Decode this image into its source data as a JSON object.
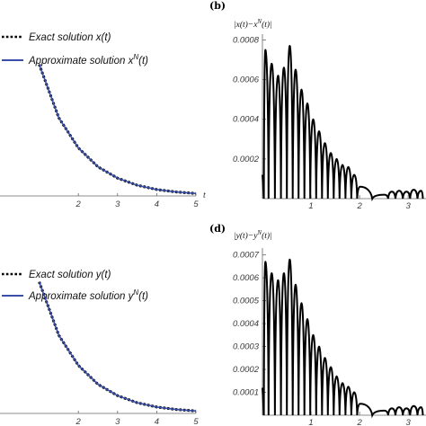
{
  "chart_data": [
    {
      "panel": "a",
      "type": "line",
      "xlabel": "t",
      "xlim": [
        0,
        5
      ],
      "x_ticks": [
        "2",
        "3",
        "4",
        "5"
      ],
      "series": [
        {
          "name": "Exact solution x(t)",
          "style": "dotted",
          "color": "#000000",
          "x": [
            1.0,
            1.5,
            2.0,
            2.5,
            3.0,
            3.5,
            4.0,
            4.5,
            5.0
          ],
          "y": [
            0.37,
            0.22,
            0.135,
            0.082,
            0.05,
            0.03,
            0.018,
            0.011,
            0.0067
          ]
        },
        {
          "name": "Approximate solution x^N(t)",
          "style": "solid",
          "color": "#3a4fa8",
          "x": [
            1.0,
            1.5,
            2.0,
            2.5,
            3.0,
            3.5,
            4.0,
            4.5,
            5.0
          ],
          "y": [
            0.37,
            0.22,
            0.135,
            0.082,
            0.05,
            0.03,
            0.018,
            0.011,
            0.0067
          ]
        }
      ],
      "legend": [
        {
          "prefix": "Exact solution ",
          "var": "x",
          "sup": "",
          "suffix": "(t)"
        },
        {
          "prefix": "Approximate solution ",
          "var": "x",
          "sup": "N",
          "suffix": "(t)"
        }
      ]
    },
    {
      "panel": "b",
      "type": "line",
      "label": "(b)",
      "ylabel": "|x(t)−x^N(t)|",
      "ylabel_parts": {
        "left": "|x(t)−x",
        "sup": "N",
        "right": "(t)|"
      },
      "xlim": [
        0,
        3.35
      ],
      "ylim": [
        0,
        0.00082
      ],
      "y_ticks": [
        0.0002,
        0.0004,
        0.0006,
        0.0008
      ],
      "y_tick_labels": [
        "0.0002",
        "0.0004",
        "0.0006",
        "0.0008"
      ],
      "x_ticks": [
        1,
        2,
        3
      ],
      "x_tick_labels": [
        "1",
        "2",
        "3"
      ],
      "series": [
        {
          "name": "",
          "color": "#000000",
          "peaks": [
            [
              0.06,
              0.00075
            ],
            [
              0.19,
              0.00068
            ],
            [
              0.32,
              0.00062
            ],
            [
              0.44,
              0.00066
            ],
            [
              0.56,
              0.00077
            ],
            [
              0.68,
              0.00065
            ],
            [
              0.8,
              0.00055
            ],
            [
              0.92,
              0.00048
            ],
            [
              1.04,
              0.0004
            ],
            [
              1.16,
              0.00034
            ],
            [
              1.28,
              0.00028
            ],
            [
              1.4,
              0.00023
            ],
            [
              1.52,
              0.0002
            ],
            [
              1.64,
              0.00017
            ],
            [
              1.76,
              0.00016
            ],
            [
              1.88,
              0.00012
            ],
            [
              2.0,
              6e-05
            ],
            [
              2.5,
              2e-05
            ],
            [
              2.65,
              3.5e-05
            ],
            [
              2.8,
              4e-05
            ],
            [
              2.95,
              3.5e-05
            ],
            [
              3.1,
              4.5e-05
            ],
            [
              3.25,
              4e-05
            ]
          ]
        }
      ]
    },
    {
      "panel": "c",
      "type": "line",
      "xlabel": "t",
      "xlim": [
        0,
        5
      ],
      "x_ticks": [
        "2",
        "3",
        "4",
        "5"
      ],
      "series": [
        {
          "name": "Exact solution y(t)",
          "style": "dotted",
          "color": "#000000",
          "x": [
            1.0,
            1.5,
            2.0,
            2.5,
            3.0,
            3.5,
            4.0,
            4.5,
            5.0
          ],
          "y": [
            0.37,
            0.22,
            0.135,
            0.082,
            0.05,
            0.03,
            0.018,
            0.011,
            0.0067
          ]
        },
        {
          "name": "Approximate solution y^N(t)",
          "style": "solid",
          "color": "#3a4fa8",
          "x": [
            1.0,
            1.5,
            2.0,
            2.5,
            3.0,
            3.5,
            4.0,
            4.5,
            5.0
          ],
          "y": [
            0.37,
            0.22,
            0.135,
            0.082,
            0.05,
            0.03,
            0.018,
            0.011,
            0.0067
          ]
        }
      ],
      "legend": [
        {
          "prefix": "Exact solution ",
          "var": "y",
          "sup": "",
          "suffix": "(t)"
        },
        {
          "prefix": "Approximate solution ",
          "var": "y",
          "sup": "N",
          "suffix": "(t)"
        }
      ]
    },
    {
      "panel": "d",
      "type": "line",
      "label": "(d)",
      "ylabel": "|y(t)−y^N(t)|",
      "ylabel_parts": {
        "left": "|y(t)−y",
        "sup": "N",
        "right": "(t)|"
      },
      "xlim": [
        0,
        3.35
      ],
      "ylim": [
        0,
        0.00073
      ],
      "y_ticks": [
        0.0001,
        0.0002,
        0.0003,
        0.0004,
        0.0005,
        0.0006,
        0.0007
      ],
      "y_tick_labels": [
        "0.0001",
        "0.0002",
        "0.0003",
        "0.0004",
        "0.0005",
        "0.0006",
        "0.0007"
      ],
      "x_ticks": [
        1,
        2,
        3
      ],
      "x_tick_labels": [
        "1",
        "2",
        "3"
      ],
      "series": [
        {
          "name": "",
          "color": "#000000",
          "peaks": [
            [
              0.06,
              0.00067
            ],
            [
              0.19,
              0.00062
            ],
            [
              0.32,
              0.00059
            ],
            [
              0.44,
              0.00062
            ],
            [
              0.56,
              0.00068
            ],
            [
              0.68,
              0.00057
            ],
            [
              0.8,
              0.00049
            ],
            [
              0.92,
              0.00042
            ],
            [
              1.04,
              0.00035
            ],
            [
              1.16,
              0.0003
            ],
            [
              1.28,
              0.00025
            ],
            [
              1.4,
              0.00021
            ],
            [
              1.52,
              0.00017
            ],
            [
              1.64,
              0.00014
            ],
            [
              1.76,
              0.000125
            ],
            [
              1.88,
              0.0001
            ],
            [
              2.0,
              5e-05
            ],
            [
              2.5,
              2e-05
            ],
            [
              2.65,
              3e-05
            ],
            [
              2.8,
              3.5e-05
            ],
            [
              2.95,
              3e-05
            ],
            [
              3.1,
              4e-05
            ],
            [
              3.25,
              3.5e-05
            ]
          ]
        }
      ]
    }
  ]
}
